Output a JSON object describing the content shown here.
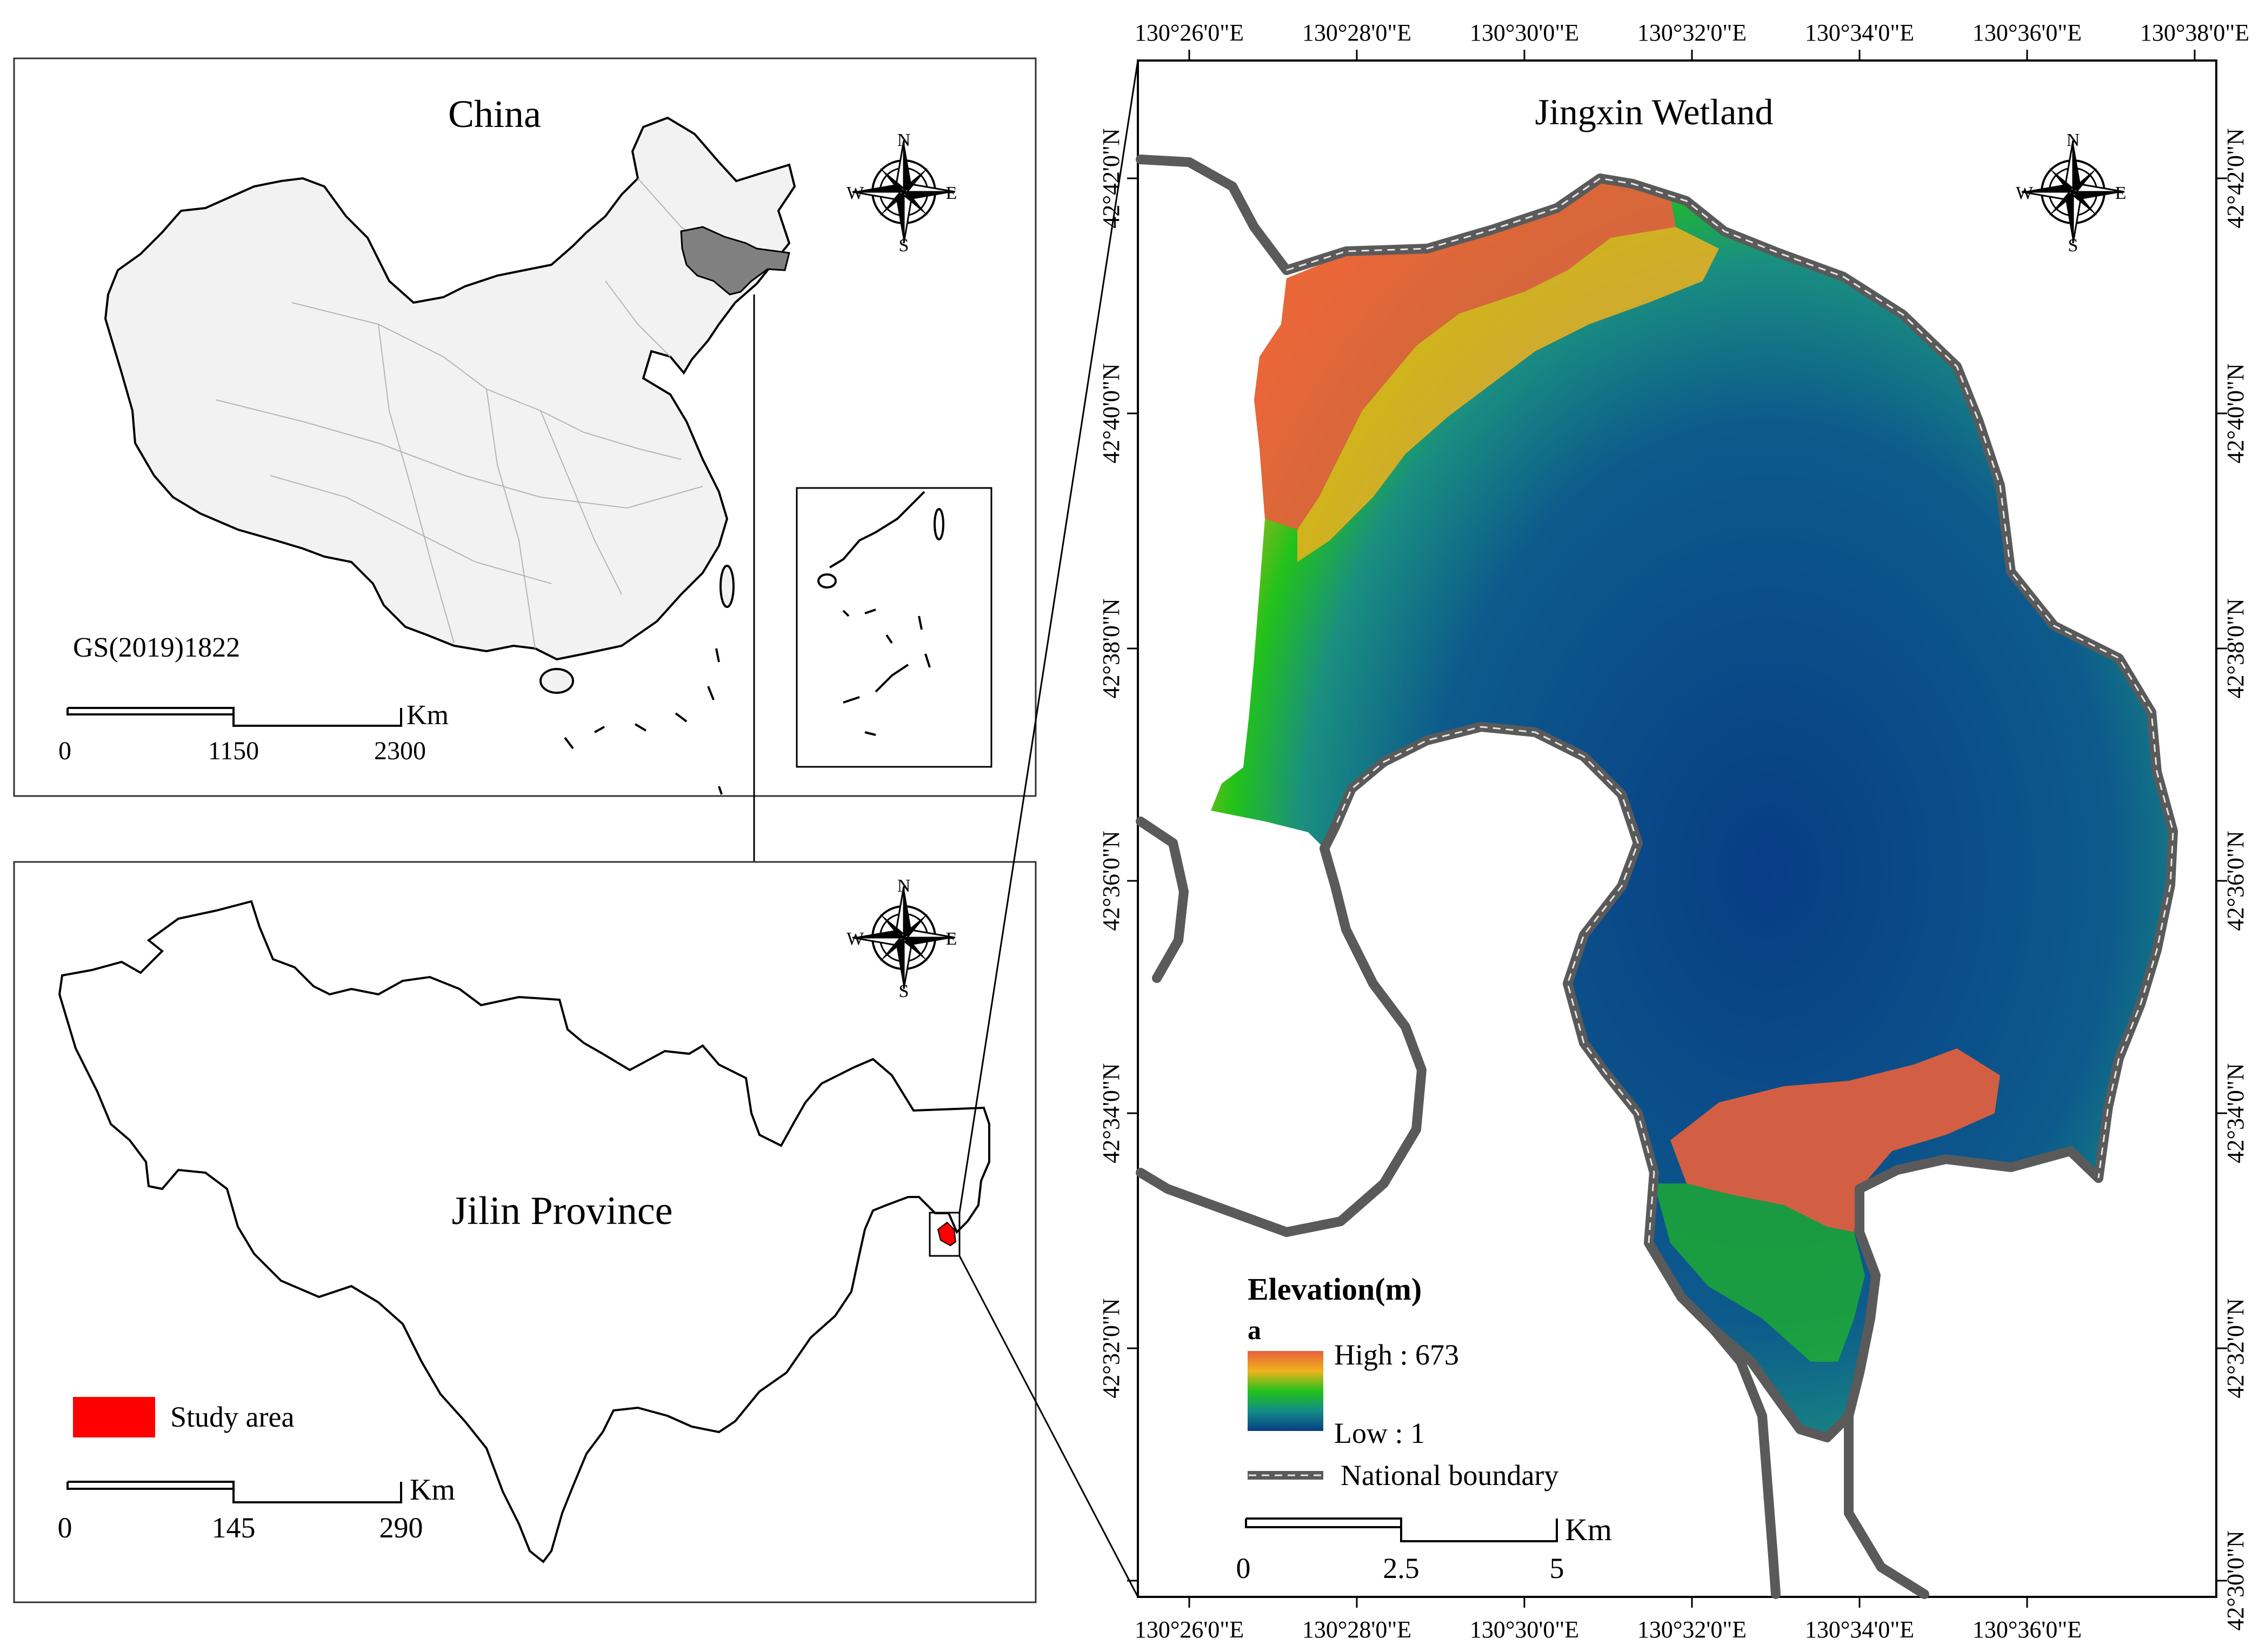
{
  "panels": {
    "china": {
      "title": "China",
      "code": "GS(2019)1822",
      "scale_labels": [
        "0",
        "1150",
        "2300"
      ],
      "scale_unit": "Km"
    },
    "jilin": {
      "title": "Jilin Province",
      "legend_label": "Study area",
      "scale_labels": [
        "0",
        "145",
        "290"
      ],
      "scale_unit": "Km"
    },
    "wetland": {
      "title": "Jingxin Wetland",
      "legend_title": "Elevation(m)",
      "legend_sub": "a",
      "legend_high": "High : 673",
      "legend_low": "Low : 1",
      "legend_boundary": "National boundary",
      "scale_labels": [
        "0",
        "2.5",
        "5"
      ],
      "scale_unit": "Km",
      "lon_labels": [
        "130°26'0\"E",
        "130°28'0\"E",
        "130°30'0\"E",
        "130°32'0\"E",
        "130°34'0\"E",
        "130°36'0\"E",
        "130°38'0\"E"
      ],
      "lon_labels_bottom": [
        "130°26'0\"E",
        "130°28'0\"E",
        "130°30'0\"E",
        "130°32'0\"E",
        "130°34'0\"E",
        "130°36'0\"E"
      ],
      "lat_labels": [
        "42°42'0\"N",
        "42°40'0\"N",
        "42°38'0\"N",
        "42°36'0\"N",
        "42°34'0\"N",
        "42°32'0\"N",
        "42°30'0\"N"
      ]
    }
  },
  "compass": {
    "n": "N",
    "s": "S",
    "e": "E",
    "w": "W"
  },
  "colors": {
    "study_area": "#ff0000",
    "jilin_highlight": "#808080",
    "china_fill": "#f2f2f2",
    "elev_high": "#e8603c",
    "elev_mid": "#22c21a",
    "elev_low": "#0a3f86",
    "boundary": "#5a5a5a"
  }
}
